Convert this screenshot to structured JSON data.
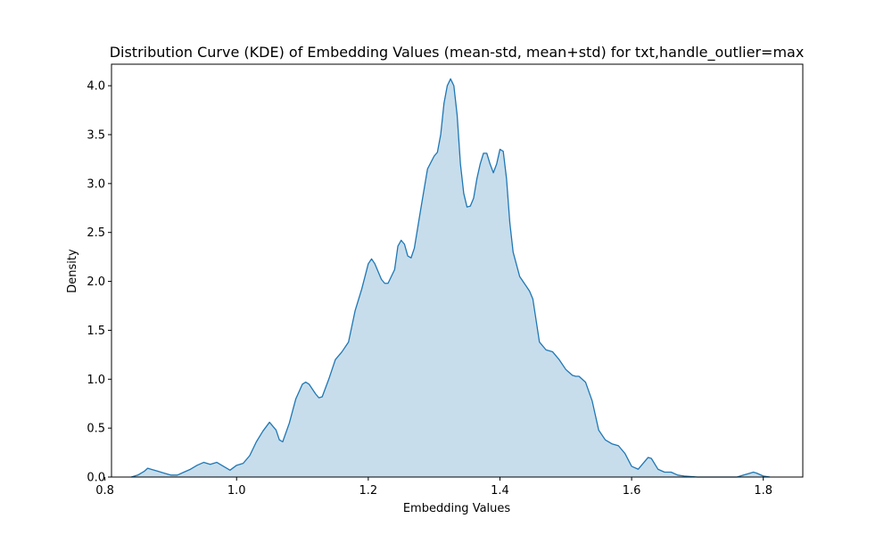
{
  "chart_data": {
    "type": "area",
    "title": "Distribution Curve (KDE) of Embedding Values (mean-std, mean+std) for txt,handle_outlier=max",
    "xlabel": "Embedding Values",
    "ylabel": "Density",
    "xlim": [
      0.81,
      1.86
    ],
    "ylim": [
      0,
      4.22
    ],
    "xticks": [
      0.8,
      1.0,
      1.2,
      1.4,
      1.6,
      1.8
    ],
    "yticks": [
      0.0,
      0.5,
      1.0,
      1.5,
      2.0,
      2.5,
      3.0,
      3.5,
      4.0
    ],
    "grid": false,
    "line_color": "#1f77b4",
    "fill_color": "#1f77b4",
    "fill_alpha": 0.25,
    "series": [
      {
        "x": [
          0.84,
          0.85,
          0.86,
          0.865,
          0.87,
          0.88,
          0.89,
          0.9,
          0.91,
          0.92,
          0.93,
          0.94,
          0.95,
          0.96,
          0.97,
          0.98,
          0.99,
          1.0,
          1.01,
          1.02,
          1.03,
          1.04,
          1.05,
          1.06,
          1.065,
          1.07,
          1.08,
          1.09,
          1.1,
          1.105,
          1.11,
          1.12,
          1.125,
          1.13,
          1.14,
          1.15,
          1.16,
          1.17,
          1.18,
          1.19,
          1.2,
          1.205,
          1.21,
          1.22,
          1.225,
          1.23,
          1.24,
          1.245,
          1.25,
          1.255,
          1.26,
          1.265,
          1.27,
          1.28,
          1.29,
          1.3,
          1.305,
          1.31,
          1.315,
          1.32,
          1.325,
          1.33,
          1.335,
          1.34,
          1.345,
          1.35,
          1.355,
          1.36,
          1.365,
          1.37,
          1.375,
          1.38,
          1.385,
          1.39,
          1.395,
          1.4,
          1.405,
          1.41,
          1.415,
          1.42,
          1.43,
          1.44,
          1.445,
          1.45,
          1.455,
          1.46,
          1.47,
          1.48,
          1.49,
          1.5,
          1.51,
          1.515,
          1.52,
          1.53,
          1.54,
          1.55,
          1.56,
          1.57,
          1.58,
          1.59,
          1.6,
          1.61,
          1.62,
          1.625,
          1.63,
          1.64,
          1.65,
          1.66,
          1.67,
          1.68,
          1.7,
          1.72,
          1.74,
          1.76,
          1.77,
          1.78,
          1.785,
          1.79,
          1.8,
          1.81
        ],
        "y": [
          0.0,
          0.02,
          0.06,
          0.09,
          0.08,
          0.06,
          0.04,
          0.02,
          0.02,
          0.05,
          0.08,
          0.12,
          0.15,
          0.13,
          0.15,
          0.11,
          0.07,
          0.12,
          0.14,
          0.22,
          0.36,
          0.47,
          0.56,
          0.48,
          0.38,
          0.36,
          0.55,
          0.8,
          0.95,
          0.97,
          0.95,
          0.85,
          0.81,
          0.82,
          1.0,
          1.2,
          1.28,
          1.38,
          1.7,
          1.92,
          2.18,
          2.23,
          2.18,
          2.02,
          1.98,
          1.98,
          2.12,
          2.36,
          2.42,
          2.38,
          2.26,
          2.24,
          2.34,
          2.75,
          3.15,
          3.28,
          3.32,
          3.5,
          3.82,
          4.0,
          4.07,
          4.0,
          3.7,
          3.2,
          2.9,
          2.76,
          2.77,
          2.85,
          3.05,
          3.2,
          3.31,
          3.31,
          3.2,
          3.11,
          3.2,
          3.35,
          3.33,
          3.05,
          2.6,
          2.3,
          2.05,
          1.95,
          1.9,
          1.82,
          1.6,
          1.38,
          1.3,
          1.28,
          1.2,
          1.1,
          1.04,
          1.03,
          1.03,
          0.97,
          0.78,
          0.48,
          0.38,
          0.34,
          0.32,
          0.24,
          0.11,
          0.08,
          0.16,
          0.2,
          0.19,
          0.08,
          0.05,
          0.05,
          0.02,
          0.01,
          0.0,
          0.0,
          0.0,
          0.0,
          0.02,
          0.04,
          0.05,
          0.04,
          0.01,
          0.0
        ]
      }
    ]
  }
}
